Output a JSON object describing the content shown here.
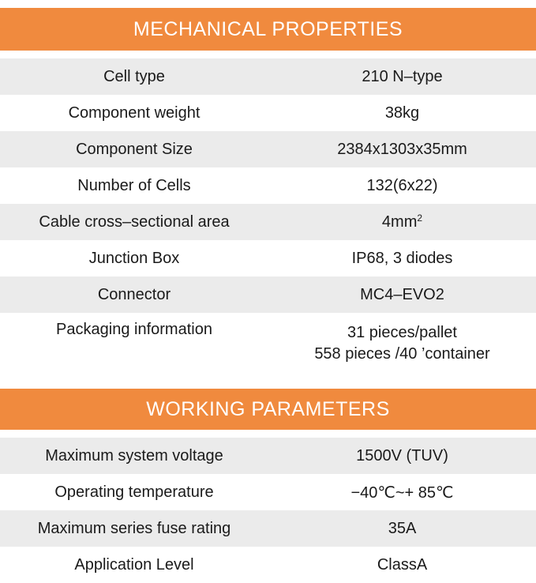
{
  "mechanical": {
    "title": "MECHANICAL PROPERTIES",
    "rows": [
      {
        "label": "Cell type",
        "value": "210 N–type"
      },
      {
        "label": "Component weight",
        "value": "38kg"
      },
      {
        "label": "Component Size",
        "value": "2384x1303x35mm"
      },
      {
        "label": "Number of Cells",
        "value": "132(6x22)"
      },
      {
        "label": "Cable cross–sectional area",
        "value": "4mm",
        "value_sup": "2"
      },
      {
        "label": "Junction Box",
        "value": "IP68, 3 diodes"
      },
      {
        "label": "Connector",
        "value": "MC4–EVO2"
      },
      {
        "label": "Packaging information",
        "value_lines": [
          "31 pieces/pallet",
          "558 pieces /40 ’container"
        ]
      }
    ]
  },
  "working": {
    "title": "WORKING PARAMETERS",
    "rows": [
      {
        "label": "Maximum system voltage",
        "value": "1500V (TUV)"
      },
      {
        "label": "Operating temperature",
        "value": "−40℃~+ 85℃"
      },
      {
        "label": "Maximum series fuse rating",
        "value": "35A"
      },
      {
        "label": "Application Level",
        "value": "ClassA"
      }
    ]
  },
  "colors": {
    "header_bg": "#f08a3e",
    "header_text": "#ffffff",
    "row_shade": "#ebebeb"
  }
}
